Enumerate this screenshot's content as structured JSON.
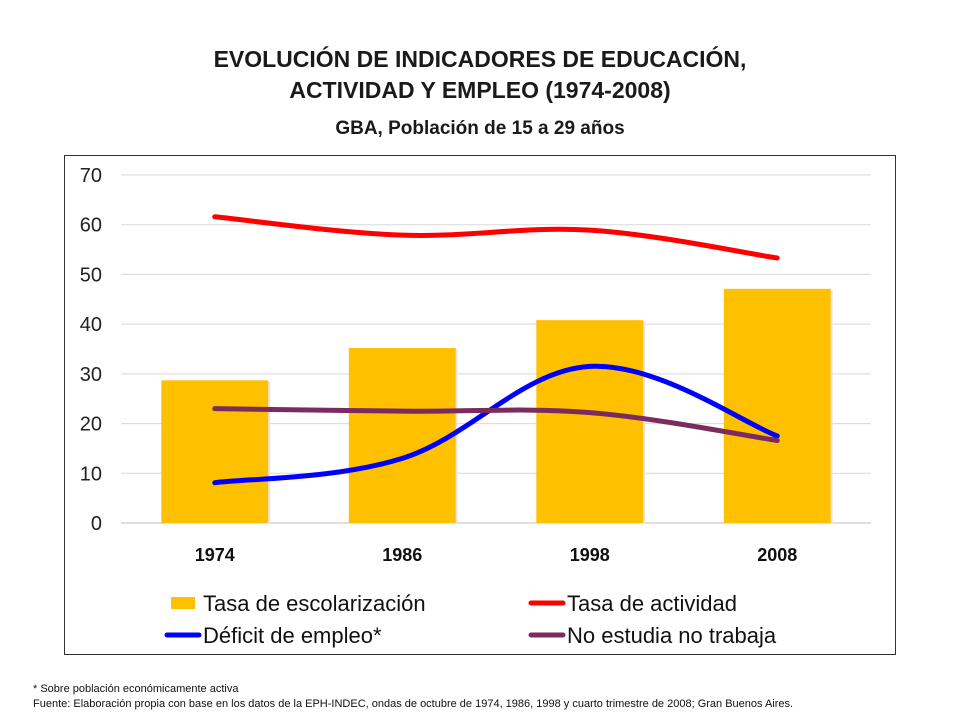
{
  "title_line1": "EVOLUCIÓN DE INDICADORES DE EDUCACIÓN,",
  "title_line2": "ACTIVIDAD Y EMPLEO (1974-2008)",
  "subtitle": "GBA, Población de 15 a 29 años",
  "footnote": "* Sobre población económicamente activa",
  "source": "Fuente: Elaboración propia con base en los datos de la EPH-INDEC, ondas de octubre de 1974,  1986,  1998  y cuarto trimestre de 2008;  Gran Buenos Aires.",
  "chart_data": {
    "type": "bar",
    "categories": [
      "1974",
      "1986",
      "1998",
      "2008"
    ],
    "ylim": [
      0,
      70
    ],
    "yticks": [
      0,
      10,
      20,
      30,
      40,
      50,
      60,
      70
    ],
    "grid": true,
    "legend_position": "bottom",
    "bar_series": {
      "name": "Tasa de escolarización",
      "color": "#FFC000",
      "values": [
        28.7,
        35.2,
        40.8,
        47.1
      ]
    },
    "line_series": [
      {
        "name": "Tasa de actividad",
        "color": "#FF0000",
        "values": [
          61.6,
          57.9,
          58.9,
          53.3
        ]
      },
      {
        "name": "Déficit de empleo*",
        "color": "#0000FF",
        "values": [
          8.1,
          13.0,
          31.5,
          17.5
        ]
      },
      {
        "name": "No estudia no trabaja",
        "color": "#7B2C5E",
        "values": [
          23.0,
          22.5,
          22.2,
          16.6
        ]
      }
    ]
  }
}
